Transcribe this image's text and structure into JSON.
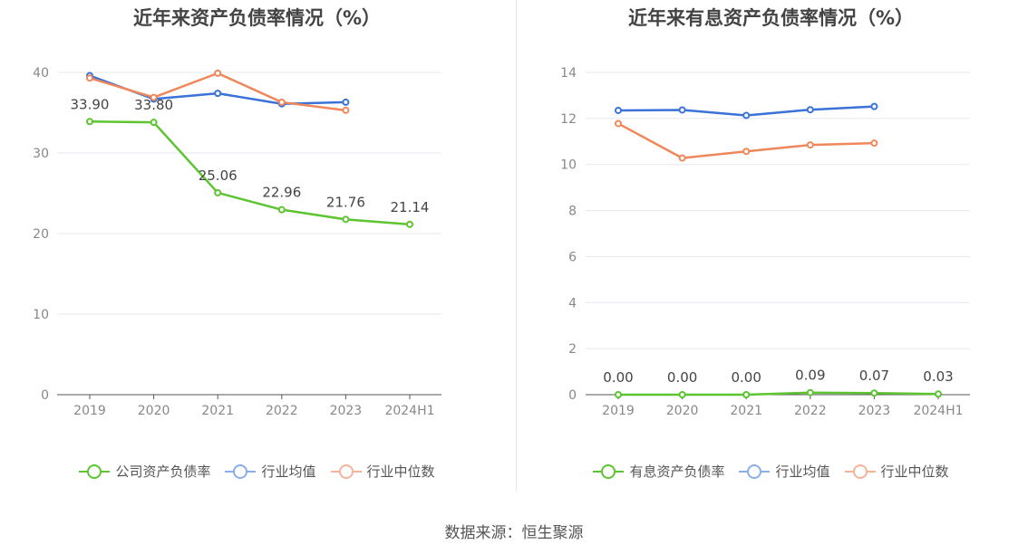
{
  "source": "数据来源：恒生聚源",
  "chart_data": [
    {
      "type": "line",
      "title": "近年来资产负债率情况（%）",
      "categories": [
        "2019",
        "2020",
        "2021",
        "2022",
        "2023",
        "2024H1"
      ],
      "ylim": [
        0,
        40
      ],
      "yticks": [
        0,
        10,
        20,
        30,
        40
      ],
      "grid": true,
      "legend_position": "bottom",
      "series": [
        {
          "name": "公司资产负债率",
          "color": "#5cc430",
          "values": [
            33.9,
            33.8,
            25.06,
            22.96,
            21.76,
            21.14
          ],
          "labels": [
            "33.90",
            "33.80",
            "25.06",
            "22.96",
            "21.76",
            "21.14"
          ]
        },
        {
          "name": "行业均值",
          "color": "#3a72d8",
          "legend_color": "#8aaeea",
          "values": [
            39.6,
            36.7,
            37.4,
            36.1,
            36.3,
            null
          ]
        },
        {
          "name": "行业中位数",
          "color": "#f0875a",
          "legend_color": "#f5b49a",
          "values": [
            39.3,
            36.9,
            39.9,
            36.3,
            35.3,
            null
          ]
        }
      ]
    },
    {
      "type": "line",
      "title": "近年来有息资产负债率情况（%）",
      "categories": [
        "2019",
        "2020",
        "2021",
        "2022",
        "2023",
        "2024H1"
      ],
      "ylim": [
        0,
        14
      ],
      "yticks": [
        0,
        2,
        4,
        6,
        8,
        10,
        12,
        14
      ],
      "grid": true,
      "legend_position": "bottom",
      "series": [
        {
          "name": "有息资产负债率",
          "color": "#5cc430",
          "values": [
            0.0,
            0.0,
            0.0,
            0.09,
            0.07,
            0.03
          ],
          "labels": [
            "0.00",
            "0.00",
            "0.00",
            "0.09",
            "0.07",
            "0.03"
          ]
        },
        {
          "name": "行业均值",
          "color": "#3a72d8",
          "legend_color": "#8aaeea",
          "values": [
            12.35,
            12.37,
            12.13,
            12.38,
            12.52,
            null
          ]
        },
        {
          "name": "行业中位数",
          "color": "#f0875a",
          "legend_color": "#f5b49a",
          "values": [
            11.78,
            10.28,
            10.57,
            10.85,
            10.93,
            null
          ]
        }
      ]
    }
  ]
}
